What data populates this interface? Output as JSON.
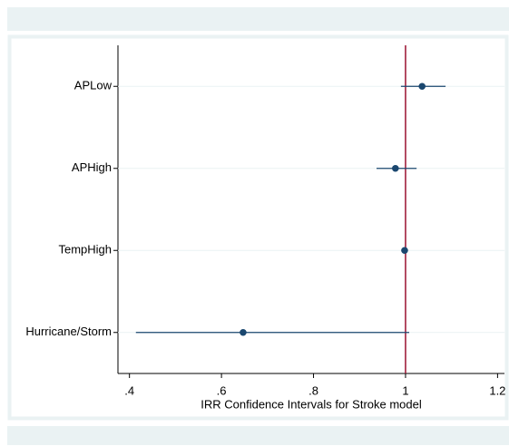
{
  "chart_data": {
    "type": "forest",
    "xlabel": "IRR Confidence Intervals for Stroke model",
    "categories": [
      "APLow",
      "APHigh",
      "TempHigh",
      "Hurricane/Storm"
    ],
    "series": [
      {
        "color": "#1a476f",
        "values": [
          1.036,
          0.978,
          0.998,
          0.647
        ],
        "lower": [
          0.99,
          0.937,
          0.995,
          0.414
        ],
        "upper": [
          1.087,
          1.024,
          1.002,
          1.008
        ]
      }
    ],
    "xlim": [
      0.375,
      1.215
    ],
    "xticks": [
      {
        "value": 0.4,
        "label": ".4"
      },
      {
        "value": 0.6,
        "label": ".6"
      },
      {
        "value": 0.8,
        "label": ".8"
      },
      1,
      1.2
    ],
    "refline": 1,
    "refline_color": "#a0203c",
    "grid": true
  }
}
